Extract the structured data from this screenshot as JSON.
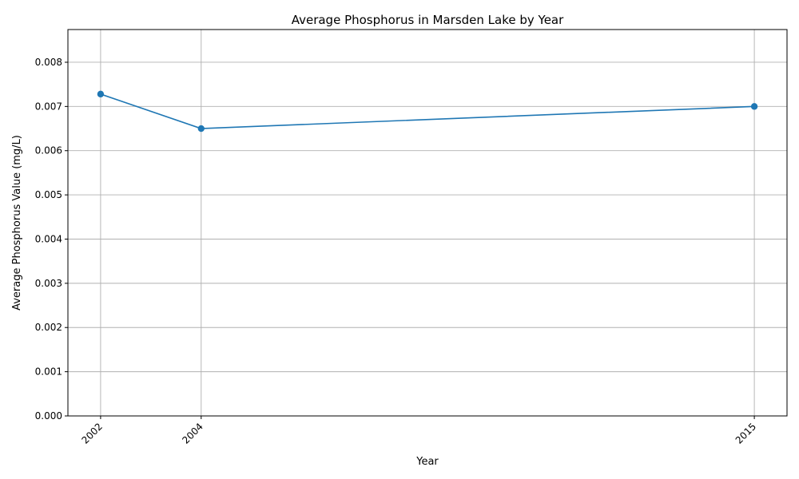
{
  "chart_data": {
    "type": "line",
    "title": "Average Phosphorus in Marsden Lake by Year",
    "xlabel": "Year",
    "ylabel": "Average Phosphorus Value (mg/L)",
    "x": [
      2002,
      2004,
      2015
    ],
    "x_tick_labels": [
      "2002",
      "2004",
      "2015"
    ],
    "series": [
      {
        "values": [
          0.00728,
          0.0065,
          0.007
        ]
      }
    ],
    "xlim": [
      2001.35,
      2015.65
    ],
    "ylim": [
      0,
      0.00874
    ],
    "y_ticks": [
      0,
      0.001,
      0.002,
      0.003,
      0.004,
      0.005,
      0.006,
      0.007,
      0.008
    ],
    "y_tick_labels": [
      "0.000",
      "0.001",
      "0.002",
      "0.003",
      "0.004",
      "0.005",
      "0.006",
      "0.007",
      "0.008"
    ],
    "grid": true,
    "marker": "circle",
    "colors": {
      "line": "#1f77b4",
      "marker": "#1f77b4"
    }
  }
}
